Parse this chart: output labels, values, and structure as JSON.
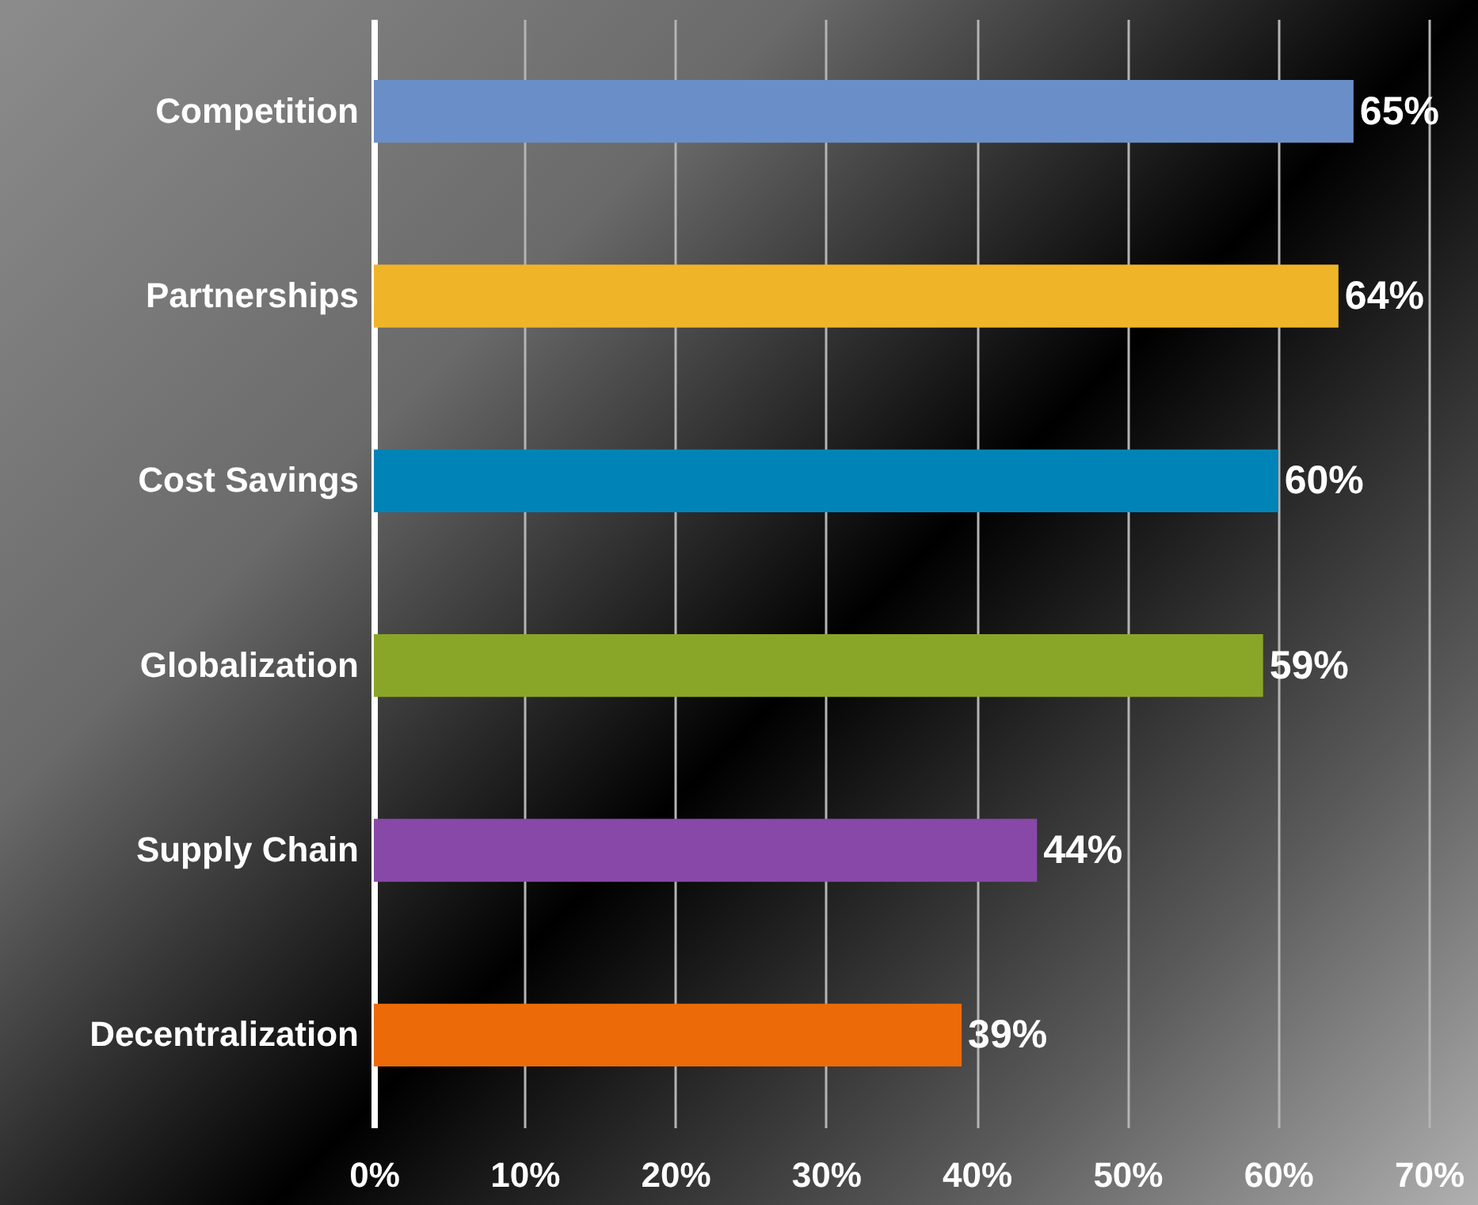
{
  "chart_data": {
    "type": "bar",
    "orientation": "horizontal",
    "categories": [
      "Competition",
      "Partnerships",
      "Cost Savings",
      "Globalization",
      "Supply Chain",
      "Decentralization"
    ],
    "values": [
      65,
      64,
      60,
      59,
      44,
      39
    ],
    "colors": [
      "#6a8fc8",
      "#f0b428",
      "#0084b8",
      "#8aa628",
      "#8848a8",
      "#ec6a08"
    ],
    "value_labels": [
      "65%",
      "64%",
      "60%",
      "59%",
      "44%",
      "39%"
    ],
    "xlim": [
      0,
      70
    ],
    "xticks": [
      {
        "value": 0,
        "label": "0%"
      },
      {
        "value": 10,
        "label": "10%"
      },
      {
        "value": 20,
        "label": "20%"
      },
      {
        "value": 30,
        "label": "30%"
      },
      {
        "value": 40,
        "label": "40%"
      },
      {
        "value": 50,
        "label": "50%"
      },
      {
        "value": 60,
        "label": "60%"
      },
      {
        "value": 70,
        "label": "70%"
      }
    ],
    "grid": "x"
  }
}
